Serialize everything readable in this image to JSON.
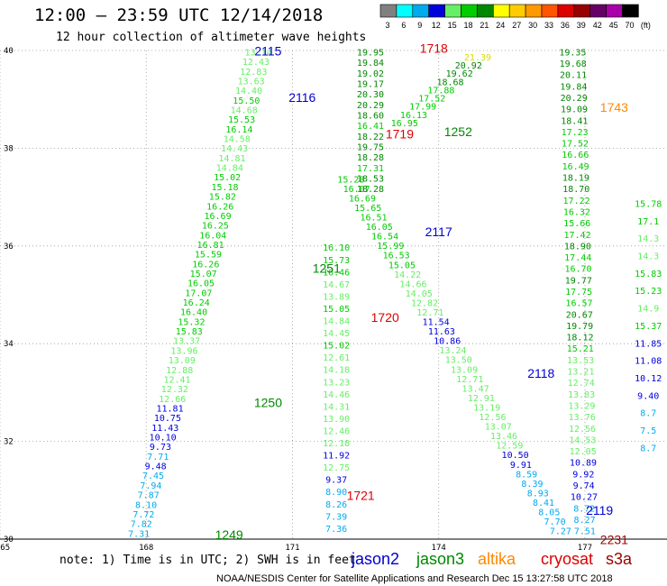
{
  "title": "12:00 – 23:59 UTC 12/14/2018",
  "subtitle": "12 hour collection of altimeter wave heights",
  "scale": {
    "labels": [
      "3",
      "6",
      "9",
      "12",
      "15",
      "18",
      "21",
      "24",
      "27",
      "30",
      "33",
      "36",
      "39",
      "42",
      "45",
      "70",
      "(ft)"
    ],
    "colors": [
      "#808080",
      "#00ffff",
      "#00aaee",
      "#0000dd",
      "#66ee66",
      "#00cc00",
      "#008800",
      "#ffff00",
      "#ffcc00",
      "#ff9900",
      "#ff5500",
      "#dd0000",
      "#990000",
      "#660066",
      "#aa00aa",
      "#000000"
    ]
  },
  "note": "note:  1) Time is in UTC; 2) SWH is in feet",
  "footer": "NOAA/NESDIS Center for Satellite Applications and Research    Dec 15 13:27:58 UTC 2018",
  "legend": [
    {
      "name": "jason2",
      "color": "#0000cc"
    },
    {
      "name": "jason3",
      "color": "#008800"
    },
    {
      "name": "altika",
      "color": "#ff8800"
    },
    {
      "name": "cryosat",
      "color": "#dd0000"
    },
    {
      "name": "s3a",
      "color": "#990000"
    }
  ],
  "chart_data": {
    "type": "scatter",
    "xlim": [
      165,
      178
    ],
    "ylim": [
      30,
      40
    ],
    "x_ticks": [
      165,
      168,
      171,
      174,
      177
    ],
    "y_ticks": [
      30,
      32,
      34,
      36,
      38,
      40
    ],
    "grid": true,
    "value_colors": {
      "12-15": "#66ee66",
      "15-18": "#00cc00",
      "18-21": "#008800",
      "9-12": "#0000dd",
      "6-9": "#00aaee",
      "21-24": "#ffff00"
    },
    "passes": [
      {
        "label": "2115",
        "lon": 170.5,
        "lat": 39.9,
        "color": "#0000cc"
      },
      {
        "label": "2116",
        "lon": 171.2,
        "lat": 38.95,
        "color": "#0000cc"
      },
      {
        "label": "2117",
        "lon": 174.0,
        "lat": 36.2,
        "color": "#0000cc"
      },
      {
        "label": "2118",
        "lon": 176.1,
        "lat": 33.3,
        "color": "#0000cc"
      },
      {
        "label": "2119",
        "lon": 177.3,
        "lat": 30.5,
        "color": "#0000cc"
      },
      {
        "label": "1718",
        "lon": 173.9,
        "lat": 39.95,
        "color": "#dd0000"
      },
      {
        "label": "1719",
        "lon": 173.2,
        "lat": 38.2,
        "color": "#dd0000"
      },
      {
        "label": "1720",
        "lon": 172.9,
        "lat": 34.45,
        "color": "#dd0000"
      },
      {
        "label": "1721",
        "lon": 172.4,
        "lat": 30.8,
        "color": "#dd0000"
      },
      {
        "label": "1252",
        "lon": 174.4,
        "lat": 38.25,
        "color": "#008800"
      },
      {
        "label": "1251",
        "lon": 171.7,
        "lat": 35.45,
        "color": "#008800"
      },
      {
        "label": "1250",
        "lon": 170.5,
        "lat": 32.7,
        "color": "#008800"
      },
      {
        "label": "1249",
        "lon": 169.7,
        "lat": 30.0,
        "color": "#008800"
      },
      {
        "label": "1743",
        "lon": 177.6,
        "lat": 38.75,
        "color": "#ff8800"
      },
      {
        "label": "2231",
        "lon": 177.6,
        "lat": 29.9,
        "color": "#990000"
      }
    ],
    "tracks": [
      {
        "name": "asc-1249",
        "values": [
          "7.31",
          "7.82",
          "7.72",
          "8.10",
          "7.87",
          "7.94",
          "7.45",
          "9.48",
          "7.71",
          "9.73",
          "10.10",
          "11.43",
          "10.75",
          "11.81",
          "12.66",
          "12.32",
          "12.41",
          "12.88",
          "13.09",
          "13.96",
          "13.37",
          "15.83",
          "15.32",
          "16.40",
          "16.24",
          "17.07",
          "16.05",
          "15.07",
          "16.26",
          "15.59",
          "16.81",
          "16.04",
          "16.25",
          "16.69",
          "16.26",
          "15.82",
          "15.18",
          "15.02",
          "14.84",
          "14.81",
          "14.43",
          "14.58",
          "16.14",
          "15.53",
          "14.68",
          "15.50",
          "14.40",
          "13.63",
          "12.83",
          "12.43",
          "13.14"
        ],
        "start": [
          167.85,
          30.05
        ],
        "end": [
          170.3,
          39.9
        ]
      },
      {
        "name": "desc-2115",
        "values": [
          "15.28",
          "16.07",
          "16.69",
          "15.65",
          "16.51",
          "16.05",
          "16.54",
          "15.99",
          "16.53",
          "15.05",
          "14.22",
          "14.66",
          "14.05",
          "12.82",
          "12.71",
          "11.54",
          "11.63",
          "10.86",
          "13.24",
          "13.50",
          "13.09",
          "12.71",
          "13.47",
          "12.91",
          "13.19",
          "12.56",
          "13.07",
          "13.46",
          "12.59",
          "10.50",
          "9.91",
          "8.59",
          "8.39",
          "8.93",
          "8.41",
          "8.05",
          "7.70",
          "7.27"
        ],
        "start": [
          172.2,
          37.3
        ],
        "end": [
          176.5,
          30.1
        ]
      },
      {
        "name": "vert-1720",
        "values": [
          "16.10",
          "15.73",
          "16.46",
          "14.67",
          "13.89",
          "15.05",
          "14.84",
          "14.45",
          "15.02",
          "12.61",
          "14.18",
          "13.23",
          "14.46",
          "14.31",
          "13.90",
          "12.46",
          "12.18",
          "11.92",
          "12.75",
          "9.37",
          "8.90",
          "8.26",
          "7.39",
          "7.36"
        ],
        "start": [
          171.9,
          35.9
        ],
        "end": [
          171.9,
          30.15
        ]
      },
      {
        "name": "upper-1718",
        "values": [
          "19.95",
          "19.84",
          "19.02",
          "19.17",
          "20.30",
          "20.29",
          "18.60",
          "16.41",
          "18.22",
          "19.75",
          "18.28",
          "17.31",
          "18.53",
          "18.28"
        ],
        "start": [
          172.6,
          39.9
        ],
        "end": [
          172.6,
          37.1
        ]
      },
      {
        "name": "asc-1252",
        "values": [
          "16.95",
          "16.13",
          "17.99",
          "17.52",
          "17.88",
          "18.68",
          "19.62",
          "20.92",
          "21.39"
        ],
        "start": [
          173.3,
          38.45
        ],
        "end": [
          174.8,
          39.8
        ]
      },
      {
        "name": "right-1743",
        "values": [
          "19.35",
          "19.68",
          "20.11",
          "19.84",
          "20.29",
          "19.09",
          "18.41",
          "17.23",
          "17.52",
          "16.66",
          "16.49",
          "18.19",
          "18.70",
          "17.22",
          "16.32",
          "15.66",
          "17.42",
          "18.90",
          "17.44",
          "16.70",
          "19.77",
          "17.75",
          "16.57",
          "20.67",
          "19.79",
          "18.12",
          "15.21",
          "13.53",
          "13.21",
          "12.74",
          "13.83",
          "13.29",
          "13.76",
          "12.56",
          "14.53",
          "12.05",
          "10.89",
          "9.92",
          "9.74",
          "10.27",
          "8.72",
          "8.27",
          "7.51"
        ],
        "start": [
          176.75,
          39.9
        ],
        "end": [
          177.0,
          30.1
        ]
      },
      {
        "name": "edge-2231",
        "values": [
          "15.78",
          "17.1",
          "14.3",
          "14.3",
          "15.83",
          "15.23",
          "14.9",
          "15.37",
          "11.85",
          "11.08",
          "10.12",
          "9.40",
          "8.7",
          "7.5",
          "8.7"
        ],
        "start": [
          178.3,
          36.8
        ],
        "end": [
          178.3,
          31.8
        ]
      }
    ]
  }
}
